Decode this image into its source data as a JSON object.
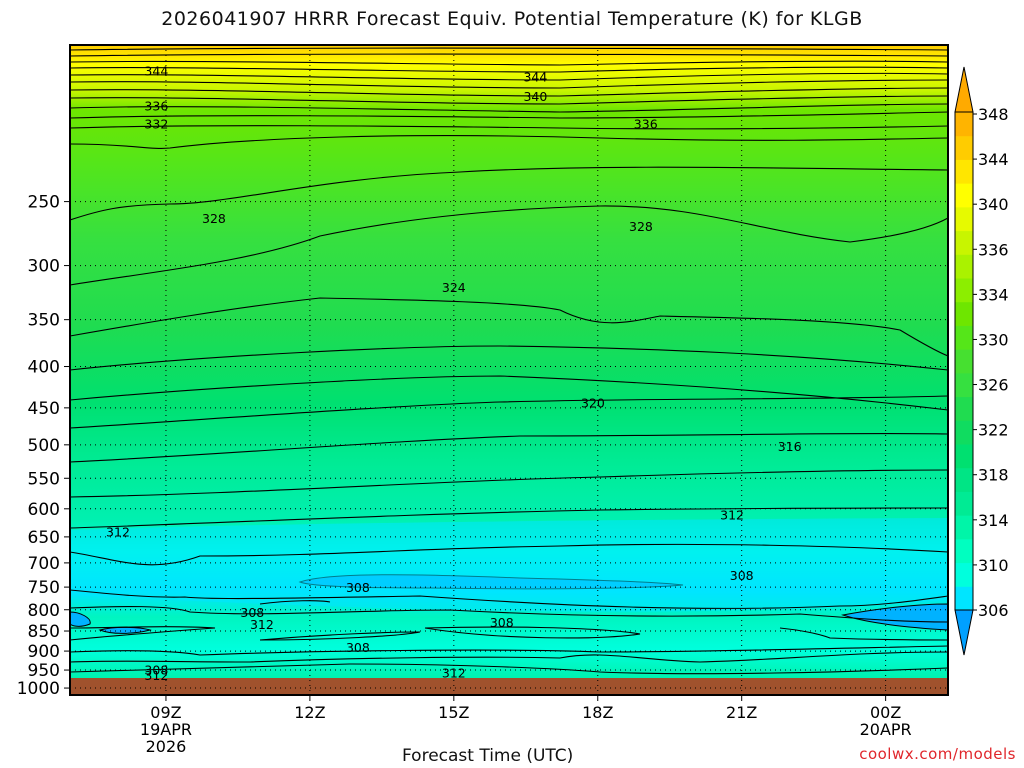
{
  "title": "2026041907 HRRR Forecast Equiv. Potential Temperature (K) for KLGB",
  "credit": "coolwx.com/models",
  "chart_data": {
    "type": "contour",
    "title": "2026041907 HRRR Forecast Equiv. Potential Temperature (K) for KLGB",
    "xlabel": "Forecast Time (UTC)",
    "ylabel": "",
    "y_scale": "log",
    "ylim": [
      1020,
      160
    ],
    "xlim": [
      7,
      25.3
    ],
    "grid": true,
    "x_ticks": [
      {
        "hour": 9,
        "label": [
          "09Z",
          "19APR",
          "2026"
        ]
      },
      {
        "hour": 12,
        "label": [
          "12Z"
        ]
      },
      {
        "hour": 15,
        "label": [
          "15Z"
        ]
      },
      {
        "hour": 18,
        "label": [
          "18Z"
        ]
      },
      {
        "hour": 21,
        "label": [
          "21Z"
        ]
      },
      {
        "hour": 24,
        "label": [
          "00Z",
          "20APR"
        ]
      }
    ],
    "y_ticks": [
      250,
      300,
      350,
      400,
      450,
      500,
      550,
      600,
      650,
      700,
      750,
      800,
      850,
      900,
      950,
      1000
    ],
    "colorbar": {
      "levels": [
        306,
        308,
        310,
        312,
        314,
        316,
        318,
        320,
        322,
        324,
        326,
        328,
        330,
        332,
        334,
        336,
        338,
        340,
        342,
        344,
        346,
        348
      ],
      "tick_labels": [
        348,
        344,
        340,
        336,
        334,
        330,
        326,
        322,
        318,
        314,
        310,
        306
      ],
      "colors": [
        "#00e5ff",
        "#00ffdd",
        "#00ffc0",
        "#00f5a8",
        "#00eb94",
        "#00e585",
        "#00e070",
        "#10dc60",
        "#20dc50",
        "#36e040",
        "#46e030",
        "#55e619",
        "#6ee600",
        "#8cee00",
        "#aaf200",
        "#c8f500",
        "#e6fa00",
        "#ffff00",
        "#ffe600",
        "#ffcc00",
        "#ffb400"
      ]
    },
    "labeled_contours": [
      {
        "value": 344,
        "hour": 8.8,
        "pressure": 172
      },
      {
        "value": 344,
        "hour": 16.7,
        "pressure": 175
      },
      {
        "value": 340,
        "hour": 16.7,
        "pressure": 185
      },
      {
        "value": 336,
        "hour": 8.8,
        "pressure": 190
      },
      {
        "value": 336,
        "hour": 19.0,
        "pressure": 200
      },
      {
        "value": 332,
        "hour": 8.8,
        "pressure": 200
      },
      {
        "value": 328,
        "hour": 10.0,
        "pressure": 262
      },
      {
        "value": 328,
        "hour": 18.9,
        "pressure": 268
      },
      {
        "value": 324,
        "hour": 15.0,
        "pressure": 319
      },
      {
        "value": 320,
        "hour": 17.9,
        "pressure": 443
      },
      {
        "value": 316,
        "hour": 22.0,
        "pressure": 502
      },
      {
        "value": 312,
        "hour": 8.0,
        "pressure": 640
      },
      {
        "value": 312,
        "hour": 20.8,
        "pressure": 610
      },
      {
        "value": 312,
        "hour": 11.0,
        "pressure": 833
      },
      {
        "value": 312,
        "hour": 8.8,
        "pressure": 963
      },
      {
        "value": 312,
        "hour": 15.0,
        "pressure": 957
      },
      {
        "value": 308,
        "hour": 8.8,
        "pressure": 949
      },
      {
        "value": 308,
        "hour": 10.8,
        "pressure": 805
      },
      {
        "value": 308,
        "hour": 13.0,
        "pressure": 750
      },
      {
        "value": 308,
        "hour": 16.0,
        "pressure": 828
      },
      {
        "value": 308,
        "hour": 21.0,
        "pressure": 725
      },
      {
        "value": 308,
        "hour": 13.0,
        "pressure": 890
      }
    ]
  }
}
